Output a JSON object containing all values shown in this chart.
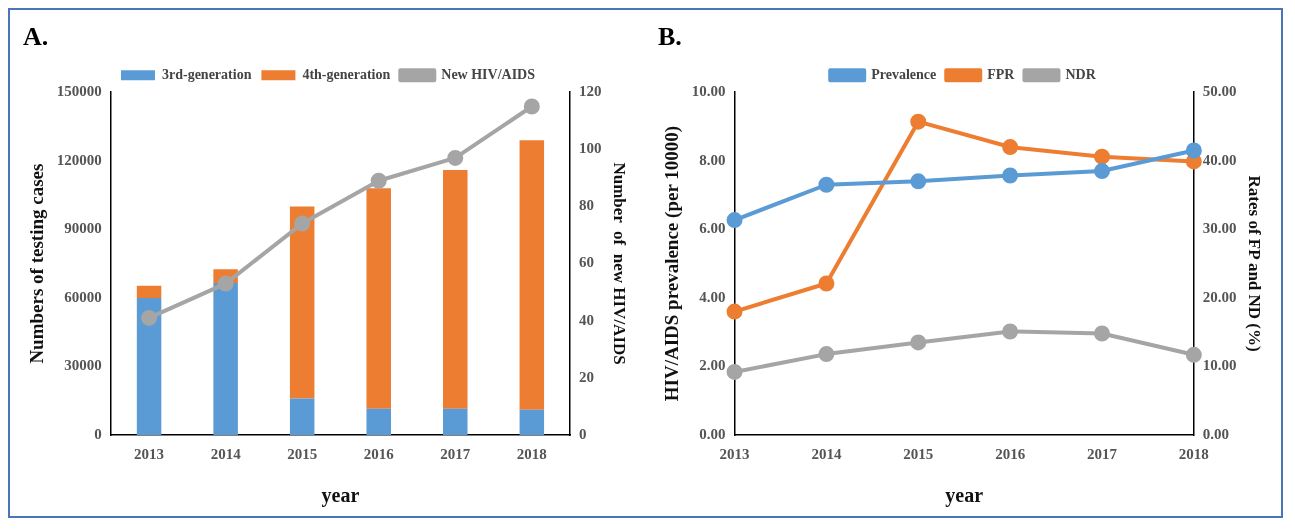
{
  "chart_data": [
    {
      "type": "bar",
      "title": "A.",
      "categories": [
        "2013",
        "2014",
        "2015",
        "2016",
        "2017",
        "2018"
      ],
      "xlabel": "year",
      "ylabel": "Numbers of testing cases",
      "y2label": "Number  of  new HIV/AIDS",
      "stacked": true,
      "legend": "top",
      "grid": false,
      "marker": "circle",
      "series": [
        {
          "name": "3rd-generation",
          "type": "bar",
          "color": "#5b9bd5",
          "values": [
            60000,
            66500,
            16000,
            11500,
            11500,
            11000
          ]
        },
        {
          "name": "4th-generation",
          "type": "bar",
          "color": "#ed7d31",
          "values": [
            5300,
            6000,
            84000,
            96500,
            104500,
            118000
          ]
        },
        {
          "name": "New HIV/AIDS",
          "type": "line",
          "axis": "y2",
          "color": "#a5a5a5",
          "values": [
            41,
            53,
            74,
            89,
            97,
            115
          ]
        }
      ],
      "ylim": [
        0,
        150000
      ],
      "yticks": [
        0,
        30000,
        60000,
        90000,
        120000,
        150000
      ],
      "y2lim": [
        0,
        120
      ],
      "y2ticks": [
        0,
        20,
        40,
        60,
        80,
        100,
        120
      ]
    },
    {
      "type": "line",
      "title": "B.",
      "categories": [
        "2013",
        "2014",
        "2015",
        "2016",
        "2017",
        "2018"
      ],
      "xlabel": "year",
      "ylabel": "HIV/AIDS prevalence (per 10000)",
      "y2label": "Rates of FP and ND (%)",
      "legend": "top",
      "grid": false,
      "marker": "circle",
      "series": [
        {
          "name": "Prevalence",
          "type": "line",
          "color": "#5b9bd5",
          "values": [
            6.27,
            7.3,
            7.4,
            7.57,
            7.7,
            8.3
          ]
        },
        {
          "name": "FPR",
          "type": "line",
          "axis": "y2",
          "color": "#ed7d31",
          "values": [
            18.0,
            22.1,
            45.7,
            42.0,
            40.6,
            39.9
          ]
        },
        {
          "name": "NDR",
          "type": "line",
          "axis": "y2",
          "color": "#a5a5a5",
          "values": [
            9.2,
            11.8,
            13.5,
            15.1,
            14.8,
            11.7
          ]
        }
      ],
      "ylim": [
        0,
        10
      ],
      "yticks": [
        {
          "value": 0,
          "label": "0.00"
        },
        {
          "value": 2,
          "label": "2.00"
        },
        {
          "value": 4,
          "label": "4.00"
        },
        {
          "value": 6,
          "label": "6.00"
        },
        {
          "value": 8,
          "label": "8.00"
        },
        {
          "value": 10,
          "label": "10.00"
        }
      ],
      "y2lim": [
        0,
        50
      ],
      "y2ticks": [
        {
          "value": 0,
          "label": "0.00"
        },
        {
          "value": 10,
          "label": "10.00"
        },
        {
          "value": 20,
          "label": "20.00"
        },
        {
          "value": 30,
          "label": "30.00"
        },
        {
          "value": 40,
          "label": "40.00"
        },
        {
          "value": 50,
          "label": "50.00"
        }
      ]
    }
  ]
}
